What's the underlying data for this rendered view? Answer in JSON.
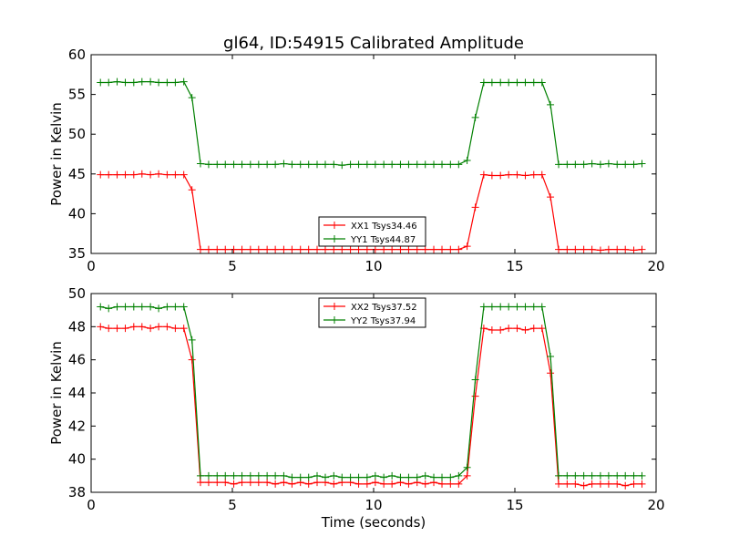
{
  "figure_title": "gl64, ID:54915 Calibrated Amplitude",
  "xlabel": "Time (seconds)",
  "chart_data": [
    {
      "type": "line",
      "title": "gl64, ID:54915 Calibrated Amplitude",
      "xlabel": "",
      "ylabel": "Power in Kelvin",
      "xlim": [
        0,
        20
      ],
      "ylim": [
        35,
        60
      ],
      "xticks": [
        0,
        5,
        10,
        15,
        20
      ],
      "yticks": [
        35,
        40,
        45,
        50,
        55,
        60
      ],
      "grid": false,
      "legend_position": "lower-center",
      "x": [
        0.33,
        0.62,
        0.92,
        1.21,
        1.51,
        1.8,
        2.1,
        2.39,
        2.69,
        2.98,
        3.28,
        3.57,
        3.87,
        4.16,
        4.46,
        4.75,
        5.05,
        5.34,
        5.64,
        5.93,
        6.23,
        6.52,
        6.82,
        7.11,
        7.41,
        7.7,
        8.0,
        8.29,
        8.59,
        8.88,
        9.18,
        9.47,
        9.77,
        10.06,
        10.36,
        10.65,
        10.95,
        11.24,
        11.54,
        11.83,
        12.13,
        12.42,
        12.72,
        13.01,
        13.31,
        13.6,
        13.9,
        14.19,
        14.49,
        14.78,
        15.08,
        15.37,
        15.67,
        15.96,
        16.26,
        16.55,
        16.85,
        17.14,
        17.44,
        17.73,
        18.03,
        18.32,
        18.62,
        18.91,
        19.21,
        19.5
      ],
      "series": [
        {
          "name": "XX1 Tsys34.46",
          "color": "#ff0000",
          "values": [
            44.9,
            44.9,
            44.9,
            44.9,
            44.9,
            45.0,
            44.9,
            45.0,
            44.9,
            44.9,
            44.9,
            43.0,
            35.5,
            35.5,
            35.5,
            35.5,
            35.5,
            35.5,
            35.5,
            35.5,
            35.5,
            35.5,
            35.5,
            35.5,
            35.5,
            35.5,
            35.5,
            35.5,
            35.5,
            35.5,
            35.5,
            35.5,
            35.5,
            35.5,
            35.5,
            35.5,
            35.5,
            35.5,
            35.5,
            35.5,
            35.5,
            35.5,
            35.5,
            35.5,
            35.9,
            40.8,
            44.9,
            44.8,
            44.8,
            44.9,
            44.9,
            44.8,
            44.9,
            44.9,
            42.1,
            35.5,
            35.5,
            35.5,
            35.5,
            35.5,
            35.4,
            35.5,
            35.5,
            35.5,
            35.4,
            35.5
          ]
        },
        {
          "name": "YY1 Tsys44.87",
          "color": "#008000",
          "values": [
            56.5,
            56.5,
            56.6,
            56.5,
            56.5,
            56.6,
            56.6,
            56.5,
            56.5,
            56.5,
            56.6,
            54.6,
            46.3,
            46.2,
            46.2,
            46.2,
            46.2,
            46.2,
            46.2,
            46.2,
            46.2,
            46.2,
            46.3,
            46.2,
            46.2,
            46.2,
            46.2,
            46.2,
            46.2,
            46.1,
            46.2,
            46.2,
            46.2,
            46.2,
            46.2,
            46.2,
            46.2,
            46.2,
            46.2,
            46.2,
            46.2,
            46.2,
            46.2,
            46.2,
            46.7,
            52.1,
            56.5,
            56.5,
            56.5,
            56.5,
            56.5,
            56.5,
            56.5,
            56.5,
            53.7,
            46.2,
            46.2,
            46.2,
            46.2,
            46.3,
            46.2,
            46.3,
            46.2,
            46.2,
            46.2,
            46.3
          ]
        }
      ]
    },
    {
      "type": "line",
      "title": "",
      "xlabel": "Time (seconds)",
      "ylabel": "Power in Kelvin",
      "xlim": [
        0,
        20
      ],
      "ylim": [
        38,
        50
      ],
      "xticks": [
        0,
        5,
        10,
        15,
        20
      ],
      "yticks": [
        38,
        40,
        42,
        44,
        46,
        48,
        50
      ],
      "grid": false,
      "legend_position": "upper-center",
      "x": [
        0.33,
        0.62,
        0.92,
        1.21,
        1.51,
        1.8,
        2.1,
        2.39,
        2.69,
        2.98,
        3.28,
        3.57,
        3.87,
        4.16,
        4.46,
        4.75,
        5.05,
        5.34,
        5.64,
        5.93,
        6.23,
        6.52,
        6.82,
        7.11,
        7.41,
        7.7,
        8.0,
        8.29,
        8.59,
        8.88,
        9.18,
        9.47,
        9.77,
        10.06,
        10.36,
        10.65,
        10.95,
        11.24,
        11.54,
        11.83,
        12.13,
        12.42,
        12.72,
        13.01,
        13.31,
        13.6,
        13.9,
        14.19,
        14.49,
        14.78,
        15.08,
        15.37,
        15.67,
        15.96,
        16.26,
        16.55,
        16.85,
        17.14,
        17.44,
        17.73,
        18.03,
        18.32,
        18.62,
        18.91,
        19.21,
        19.5
      ],
      "series": [
        {
          "name": "XX2 Tsys37.52",
          "color": "#ff0000",
          "values": [
            48.0,
            47.9,
            47.9,
            47.9,
            48.0,
            48.0,
            47.9,
            48.0,
            48.0,
            47.9,
            47.9,
            46.0,
            38.6,
            38.6,
            38.6,
            38.6,
            38.5,
            38.6,
            38.6,
            38.6,
            38.6,
            38.5,
            38.6,
            38.5,
            38.6,
            38.5,
            38.6,
            38.6,
            38.5,
            38.6,
            38.6,
            38.5,
            38.5,
            38.6,
            38.5,
            38.5,
            38.6,
            38.5,
            38.6,
            38.5,
            38.6,
            38.5,
            38.5,
            38.5,
            39.0,
            43.8,
            47.9,
            47.8,
            47.8,
            47.9,
            47.9,
            47.8,
            47.9,
            47.9,
            45.2,
            38.5,
            38.5,
            38.5,
            38.4,
            38.5,
            38.5,
            38.5,
            38.5,
            38.4,
            38.5,
            38.5
          ]
        },
        {
          "name": "YY2 Tsys37.94",
          "color": "#008000",
          "values": [
            49.2,
            49.1,
            49.2,
            49.2,
            49.2,
            49.2,
            49.2,
            49.1,
            49.2,
            49.2,
            49.2,
            47.2,
            39.0,
            39.0,
            39.0,
            39.0,
            39.0,
            39.0,
            39.0,
            39.0,
            39.0,
            39.0,
            39.0,
            38.9,
            38.9,
            38.9,
            39.0,
            38.9,
            39.0,
            38.9,
            38.9,
            38.9,
            38.9,
            39.0,
            38.9,
            39.0,
            38.9,
            38.9,
            38.9,
            39.0,
            38.9,
            38.9,
            38.9,
            39.0,
            39.5,
            44.8,
            49.2,
            49.2,
            49.2,
            49.2,
            49.2,
            49.2,
            49.2,
            49.2,
            46.2,
            39.0,
            39.0,
            39.0,
            39.0,
            39.0,
            39.0,
            39.0,
            39.0,
            39.0,
            39.0,
            39.0
          ]
        }
      ]
    }
  ]
}
